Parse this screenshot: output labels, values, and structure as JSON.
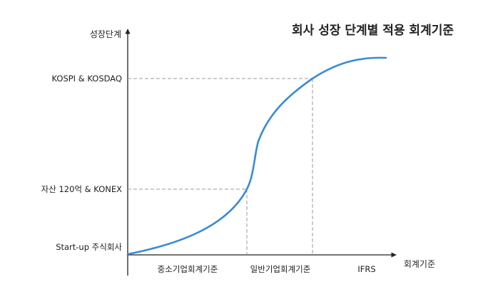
{
  "title": "회사 성장 단계별 적용 회계기준",
  "y_axis": {
    "label": "성장단계",
    "stages": [
      "Start-up 주식회사",
      "자산 120억 & KONEX",
      "KOSPI & KOSDAQ"
    ]
  },
  "x_axis": {
    "label": "회계기준",
    "standards": [
      "중소기업회계기준",
      "일반기업회계기준",
      "IFRS"
    ]
  },
  "colors": {
    "curve": "#3a8ad6",
    "axis": "#222222",
    "guide": "#9a9a9a"
  }
}
